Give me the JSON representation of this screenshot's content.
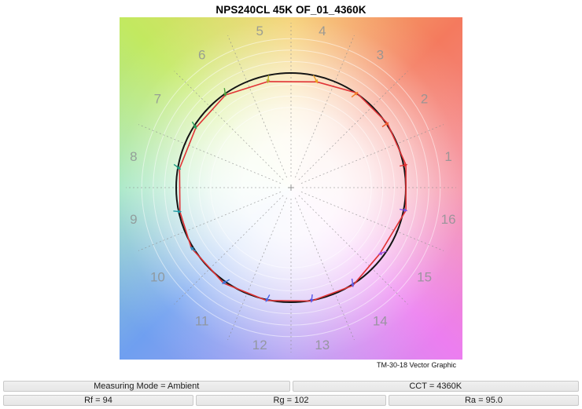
{
  "header": {
    "title": "NPS240CL 45K OF_01_4360K"
  },
  "chart_data": {
    "type": "tm30_color_vector",
    "title": "NPS240CL 45K OF_01_4360K",
    "caption": "TM-30-18 Vector Graphic",
    "description": "IES TM-30-18 Color Vector Graphic: red test-source vector versus black reference circle across 16 hue-angle bins, over a hue-wheel gradient background",
    "metrics": {
      "measuring_mode": "Ambient",
      "cct": "4360K",
      "rf": 94,
      "rg": 102,
      "ra": 95.0
    },
    "hue_bins": [
      {
        "bin": 1,
        "label": "1",
        "test_radius_ratio": 1.02,
        "hue_shift_deg": 0,
        "arrow_color": "#e03233"
      },
      {
        "bin": 2,
        "label": "2",
        "test_radius_ratio": 1.01,
        "hue_shift_deg": 0,
        "arrow_color": "#ea5a2c"
      },
      {
        "bin": 3,
        "label": "3",
        "test_radius_ratio": 1.005,
        "hue_shift_deg": -1,
        "arrow_color": "#f07e28"
      },
      {
        "bin": 4,
        "label": "4",
        "test_radius_ratio": 0.95,
        "hue_shift_deg": -2.5,
        "arrow_color": "#eda328"
      },
      {
        "bin": 5,
        "label": "5",
        "test_radius_ratio": 0.947,
        "hue_shift_deg": 1,
        "arrow_color": "#bcb32c"
      },
      {
        "bin": 6,
        "label": "6",
        "test_radius_ratio": 0.99,
        "hue_shift_deg": 1.5,
        "arrow_color": "#4da23c"
      },
      {
        "bin": 7,
        "label": "7",
        "test_radius_ratio": 0.98,
        "hue_shift_deg": 1.5,
        "arrow_color": "#2ba35f"
      },
      {
        "bin": 8,
        "label": "8",
        "test_radius_ratio": 0.985,
        "hue_shift_deg": 1.5,
        "arrow_color": "#1da183"
      },
      {
        "bin": 9,
        "label": "9",
        "test_radius_ratio": 0.99,
        "hue_shift_deg": 1,
        "arrow_color": "#1b9aa3"
      },
      {
        "bin": 10,
        "label": "10",
        "test_radius_ratio": 1.015,
        "hue_shift_deg": -2.5,
        "arrow_color": "#2f8fc4"
      },
      {
        "bin": 11,
        "label": "11",
        "test_radius_ratio": 1.02,
        "hue_shift_deg": -1.5,
        "arrow_color": "#3f74dd"
      },
      {
        "bin": 12,
        "label": "12",
        "test_radius_ratio": 1.008,
        "hue_shift_deg": -1,
        "arrow_color": "#4a63e6"
      },
      {
        "bin": 13,
        "label": "13",
        "test_radius_ratio": 1.005,
        "hue_shift_deg": -1,
        "arrow_color": "#5555e8"
      },
      {
        "bin": 14,
        "label": "14",
        "test_radius_ratio": 1.01,
        "hue_shift_deg": -1.5,
        "arrow_color": "#5f5ae4"
      },
      {
        "bin": 15,
        "label": "15",
        "test_radius_ratio": 0.965,
        "hue_shift_deg": -3,
        "arrow_color": "#9a4ae0"
      },
      {
        "bin": 16,
        "label": "16",
        "test_radius_ratio": 1.02,
        "hue_shift_deg": 0,
        "arrow_color": "#7e55e6"
      }
    ],
    "guide_circle_ratios": [
      0.7,
      0.8,
      0.9,
      1.1,
      1.2,
      1.3
    ],
    "radial_line_count": 16,
    "colors": {
      "reference_circle": "#141414",
      "test_vector": "#e13336",
      "hue_label": "#8e9394",
      "radial_line": "#8a8a8a",
      "guide_circle": "#ffffff"
    },
    "layout": {
      "size": 436,
      "center": [
        218,
        217
      ],
      "reference_radius": 146,
      "label_radius": 204,
      "radial_extent": [
        14,
        210
      ],
      "grid": "dashed radial spokes every 22.5 degrees",
      "legend_position": "none"
    }
  },
  "info_bars": {
    "row1": [
      {
        "label": "Measuring Mode = Ambient"
      },
      {
        "label": "CCT = 4360K"
      }
    ],
    "row2": [
      {
        "label": "Rf = 94"
      },
      {
        "label": "Rg = 102"
      },
      {
        "label": "Ra = 95.0"
      }
    ]
  }
}
